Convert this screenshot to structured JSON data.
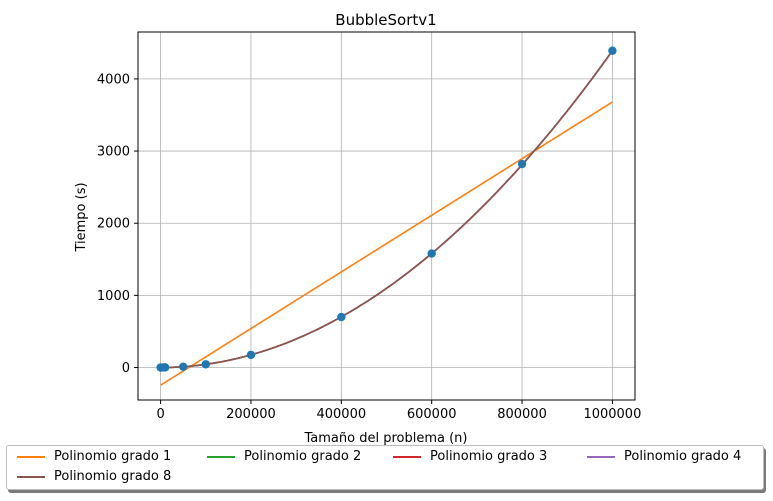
{
  "chart_data": {
    "type": "line",
    "title": "BubbleSortv1",
    "xlabel": "Tamaño del problema (n)",
    "ylabel": "Tiempo (s)",
    "xlim": [
      -50000,
      1050000
    ],
    "ylim": [
      -450,
      4650
    ],
    "xticks": [
      0,
      200000,
      400000,
      600000,
      800000,
      1000000
    ],
    "xtick_labels": [
      "0",
      "200000",
      "400000",
      "600000",
      "800000",
      "1000000"
    ],
    "yticks": [
      0,
      1000,
      2000,
      3000,
      4000
    ],
    "ytick_labels": [
      "0",
      "1000",
      "2000",
      "3000",
      "4000"
    ],
    "grid": true,
    "legend_position": "bottom-outside",
    "points": {
      "color": "#1f77b4",
      "x": [
        100,
        1000,
        5000,
        10000,
        50000,
        100000,
        200000,
        400000,
        600000,
        800000,
        1000000
      ],
      "y": [
        0,
        0,
        1,
        2,
        12,
        45,
        175,
        700,
        1580,
        2820,
        4390
      ]
    },
    "series": [
      {
        "name": "Polinomio grado 1",
        "color": "#ff7f0e",
        "kind": "linear",
        "coef": [
          -245,
          0.003925
        ]
      },
      {
        "name": "Polinomio grado 2",
        "color": "#2ca02c",
        "kind": "quadratic",
        "coef": [
          0,
          0,
          4.39e-09
        ]
      },
      {
        "name": "Polinomio grado 3",
        "color": "#d62728",
        "kind": "quadratic",
        "coef": [
          0,
          0,
          4.39e-09
        ]
      },
      {
        "name": "Polinomio grado 4",
        "color": "#9467bd",
        "kind": "quadratic",
        "coef": [
          0,
          0,
          4.39e-09
        ]
      },
      {
        "name": "Polinomio grado 8",
        "color": "#8c564b",
        "kind": "quadratic",
        "coef": [
          0,
          0,
          4.39e-09
        ]
      }
    ],
    "fit_x_range": [
      0,
      1000000
    ]
  }
}
